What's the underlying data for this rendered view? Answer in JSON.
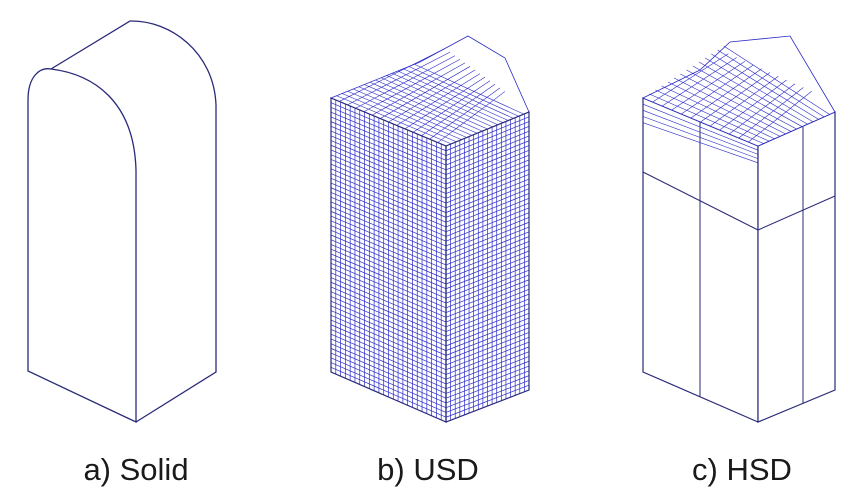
{
  "panels": [
    {
      "id": "solid",
      "caption": "a) Solid"
    },
    {
      "id": "usd",
      "caption": "b) USD"
    },
    {
      "id": "hsd",
      "caption": "c) HSD"
    }
  ],
  "colors": {
    "edge": "#2a2a7a",
    "grid": "#2b2bc8",
    "background": "#ffffff"
  }
}
